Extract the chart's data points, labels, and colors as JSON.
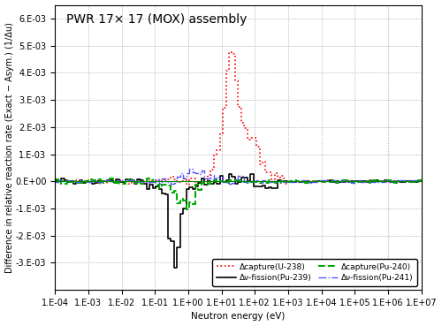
{
  "title": "PWR 17× 17 (MOX) assembly",
  "xlabel": "Neutron energy (eV)",
  "ylabel": "Difference in relative reaction rate (Exact − Asym.) (1/Δu)",
  "xlim": [
    0.0001,
    10000000.0
  ],
  "ylim": [
    -0.004,
    0.0065
  ],
  "yticks": [
    -0.003,
    -0.002,
    -0.001,
    0,
    0.001,
    0.002,
    0.003,
    0.004,
    0.005,
    0.006
  ],
  "ytick_labels": [
    "-3.E-03",
    "-2.E-03",
    "-1.E-03",
    "0.E+00",
    "1.E-03",
    "2.E-03",
    "3.E-03",
    "4.E-03",
    "5.E-03",
    "6.E-03"
  ],
  "xtick_labels": [
    "1.E-04",
    "1.E-03",
    "1.E-02",
    "1.E-01",
    "1.E+00",
    "1.E+01",
    "1.E+02",
    "1.E+03",
    "1.E+04",
    "1.E+05",
    "1.E+06",
    "1.E+07"
  ],
  "legend": [
    {
      "label": "Δcapture(U-238)",
      "color": "#ff0000",
      "linestyle": "dotted",
      "linewidth": 1.2
    },
    {
      "label": "Δν-fission(Pu-239)",
      "color": "#000000",
      "linestyle": "solid",
      "linewidth": 1.2
    },
    {
      "label": "Δcapture(Pu-240)",
      "color": "#00aa00",
      "linestyle": "dashed",
      "linewidth": 1.5
    },
    {
      "label": "Δν-fission(Pu-241)",
      "color": "#5555ff",
      "linestyle": "dashdot",
      "linewidth": 1.0
    }
  ],
  "background_color": "#ffffff",
  "grid_color": "#999999",
  "title_fontsize": 10,
  "label_fontsize": 7.5,
  "tick_fontsize": 7
}
